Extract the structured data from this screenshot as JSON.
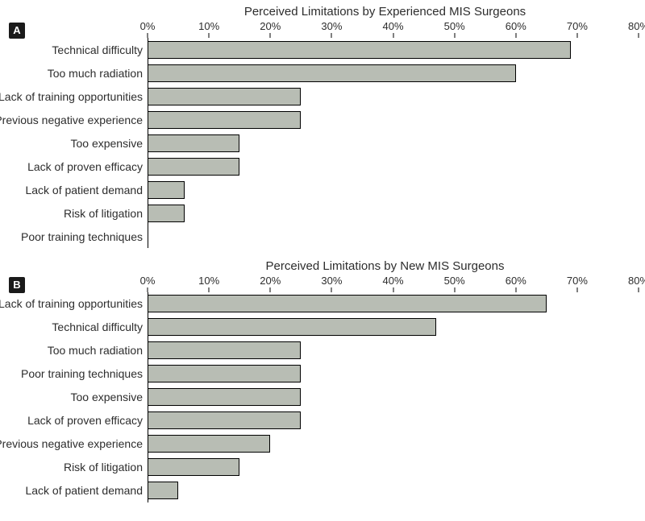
{
  "panelA": {
    "badge": "A",
    "title": "Perceived Limitations by Experienced MIS Surgeons",
    "type": "bar",
    "xlim": [
      0,
      80
    ],
    "xtick_step": 10,
    "xtick_suffix": "%",
    "bar_color": "#b8bdb4",
    "bar_border": "#000000",
    "background_color": "#ffffff",
    "label_fontsize": 14,
    "tick_fontsize": 13,
    "title_fontsize": 15,
    "categories": [
      "Technical difficulty",
      "Too much radiation",
      "Lack of training opportunities",
      "Previous negative experience",
      "Too expensive",
      "Lack of proven efficacy",
      "Lack of patient demand",
      "Risk of litigation",
      "Poor training techniques"
    ],
    "values": [
      69,
      60,
      25,
      25,
      15,
      15,
      6,
      6,
      0
    ]
  },
  "panelB": {
    "badge": "B",
    "title": "Perceived Limitations by New MIS Surgeons",
    "type": "bar",
    "xlim": [
      0,
      80
    ],
    "xtick_step": 10,
    "xtick_suffix": "%",
    "bar_color": "#b8bdb4",
    "bar_border": "#000000",
    "background_color": "#ffffff",
    "label_fontsize": 14,
    "tick_fontsize": 13,
    "title_fontsize": 15,
    "categories": [
      "Lack of training opportunities",
      "Technical difficulty",
      "Too much radiation",
      "Poor training techniques",
      "Too expensive",
      "Lack of proven efficacy",
      "Previous negative experience",
      "Risk of litigation",
      "Lack of patient demand"
    ],
    "values": [
      65,
      47,
      25,
      25,
      25,
      25,
      20,
      15,
      5
    ]
  }
}
